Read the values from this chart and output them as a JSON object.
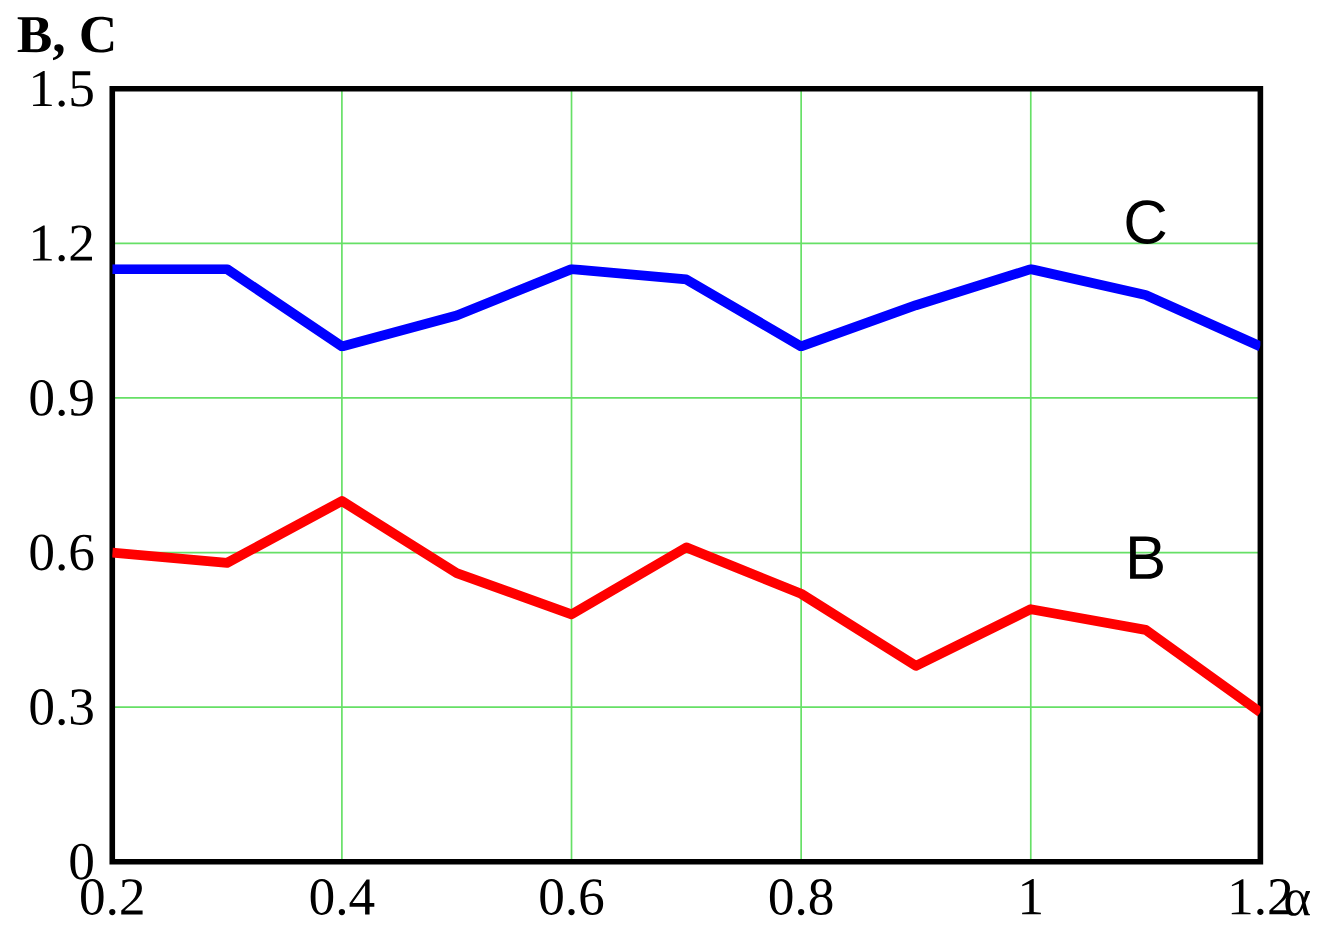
{
  "chart_data": {
    "type": "line",
    "xlabel": "α",
    "ylabel": "B, C",
    "x": [
      0.2,
      0.3,
      0.4,
      0.5,
      0.6,
      0.7,
      0.8,
      0.9,
      1.0,
      1.1,
      1.2
    ],
    "series": [
      {
        "name": "C",
        "color": "#0000ff",
        "values": [
          1.15,
          1.15,
          1.0,
          1.06,
          1.15,
          1.13,
          1.0,
          1.08,
          1.15,
          1.1,
          1.0
        ]
      },
      {
        "name": "B",
        "color": "#ff0000",
        "values": [
          0.6,
          0.58,
          0.7,
          0.56,
          0.48,
          0.61,
          0.52,
          0.38,
          0.49,
          0.45,
          0.29
        ]
      }
    ],
    "xlim": [
      0.2,
      1.2
    ],
    "xticks": [
      0.2,
      0.4,
      0.6,
      0.8,
      1,
      1.2
    ],
    "ylim": [
      0,
      1.5
    ],
    "yticks": [
      0,
      0.3,
      0.6,
      0.9,
      1.2,
      1.5
    ],
    "grid": true,
    "legend": false,
    "marker": "none",
    "line_style": "solid"
  }
}
